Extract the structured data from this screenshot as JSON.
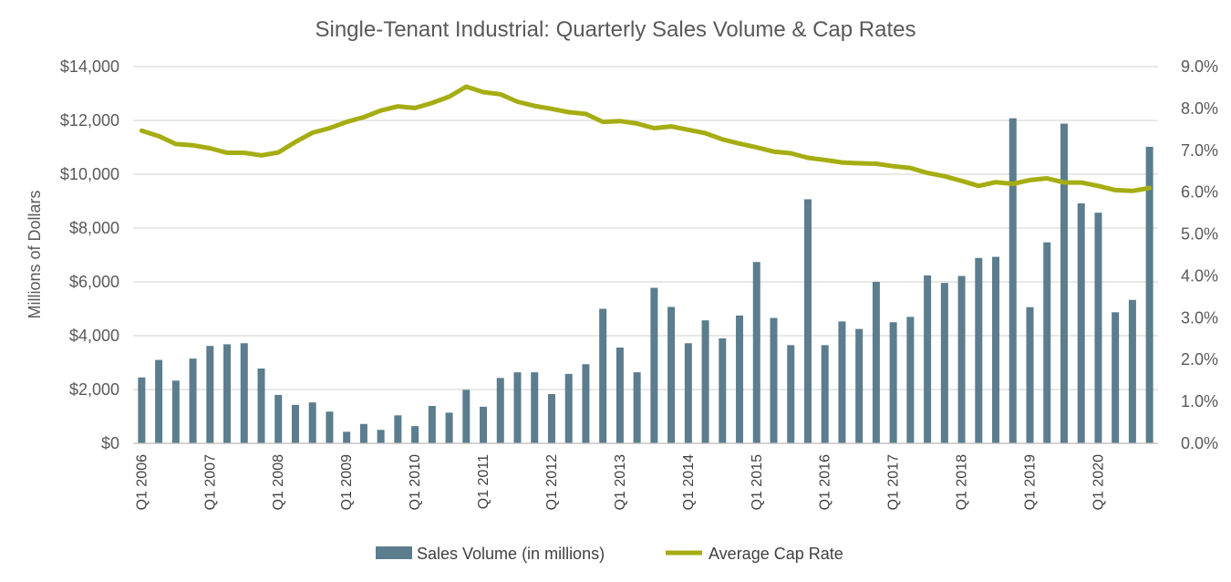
{
  "chart_data": {
    "type": "bar",
    "title": "Single-Tenant Industrial: Quarterly Sales Volume & Cap Rates",
    "ylabel": "Millions of Dollars",
    "y_ticks": [
      "$0",
      "$2,000",
      "$4,000",
      "$6,000",
      "$8,000",
      "$10,000",
      "$12,000",
      "$14,000"
    ],
    "ylim": [
      0,
      14000
    ],
    "y2_ticks": [
      "0.0%",
      "1.0%",
      "2.0%",
      "3.0%",
      "4.0%",
      "5.0%",
      "6.0%",
      "7.0%",
      "8.0%",
      "9.0%"
    ],
    "y2lim": [
      0,
      9
    ],
    "x_tick_labels": [
      "Q1 2006",
      "Q1 2007",
      "Q1 2008",
      "Q1 2009",
      "Q1 2010",
      "Q1 2011",
      "Q1 2012",
      "Q1 2013",
      "Q1 2014",
      "Q1 2015",
      "Q1 2016",
      "Q1 2017",
      "Q1 2018",
      "Q1 2019",
      "Q1 2020"
    ],
    "grid": true,
    "legend_position": "bottom",
    "colors": {
      "bar": "#5b7d8e",
      "line": "#a5ad12",
      "grid": "#d9d9d9",
      "text": "#595959"
    },
    "series": [
      {
        "name": "Sales Volume (in millions)",
        "type": "bar",
        "axis": "left",
        "values": [
          2450,
          3100,
          2330,
          3150,
          3620,
          3680,
          3720,
          2780,
          1800,
          1430,
          1520,
          1180,
          430,
          720,
          500,
          1040,
          640,
          1390,
          1140,
          1990,
          1360,
          2430,
          2640,
          2640,
          1830,
          2580,
          2940,
          5000,
          3560,
          2640,
          5780,
          5070,
          3720,
          4570,
          3900,
          4750,
          6740,
          4660,
          3650,
          9070,
          3650,
          4530,
          4250,
          6000,
          4500,
          4700,
          6240,
          5960,
          6220,
          6890,
          6930,
          12080,
          5060,
          7470,
          11880,
          8920,
          8570,
          4870,
          5330,
          11020
        ]
      },
      {
        "name": "Average Cap Rate",
        "type": "line",
        "axis": "right",
        "values": [
          7.47,
          7.34,
          7.15,
          7.12,
          7.05,
          6.94,
          6.94,
          6.88,
          6.95,
          7.2,
          7.42,
          7.53,
          7.68,
          7.79,
          7.95,
          8.05,
          8.01,
          8.13,
          8.28,
          8.52,
          8.39,
          8.34,
          8.16,
          8.06,
          7.99,
          7.91,
          7.87,
          7.68,
          7.7,
          7.64,
          7.53,
          7.57,
          7.49,
          7.41,
          7.26,
          7.16,
          7.07,
          6.97,
          6.93,
          6.82,
          6.77,
          6.71,
          6.69,
          6.68,
          6.62,
          6.58,
          6.46,
          6.38,
          6.27,
          6.15,
          6.24,
          6.2,
          6.29,
          6.33,
          6.23,
          6.23,
          6.15,
          6.05,
          6.03,
          6.1
        ]
      }
    ]
  }
}
